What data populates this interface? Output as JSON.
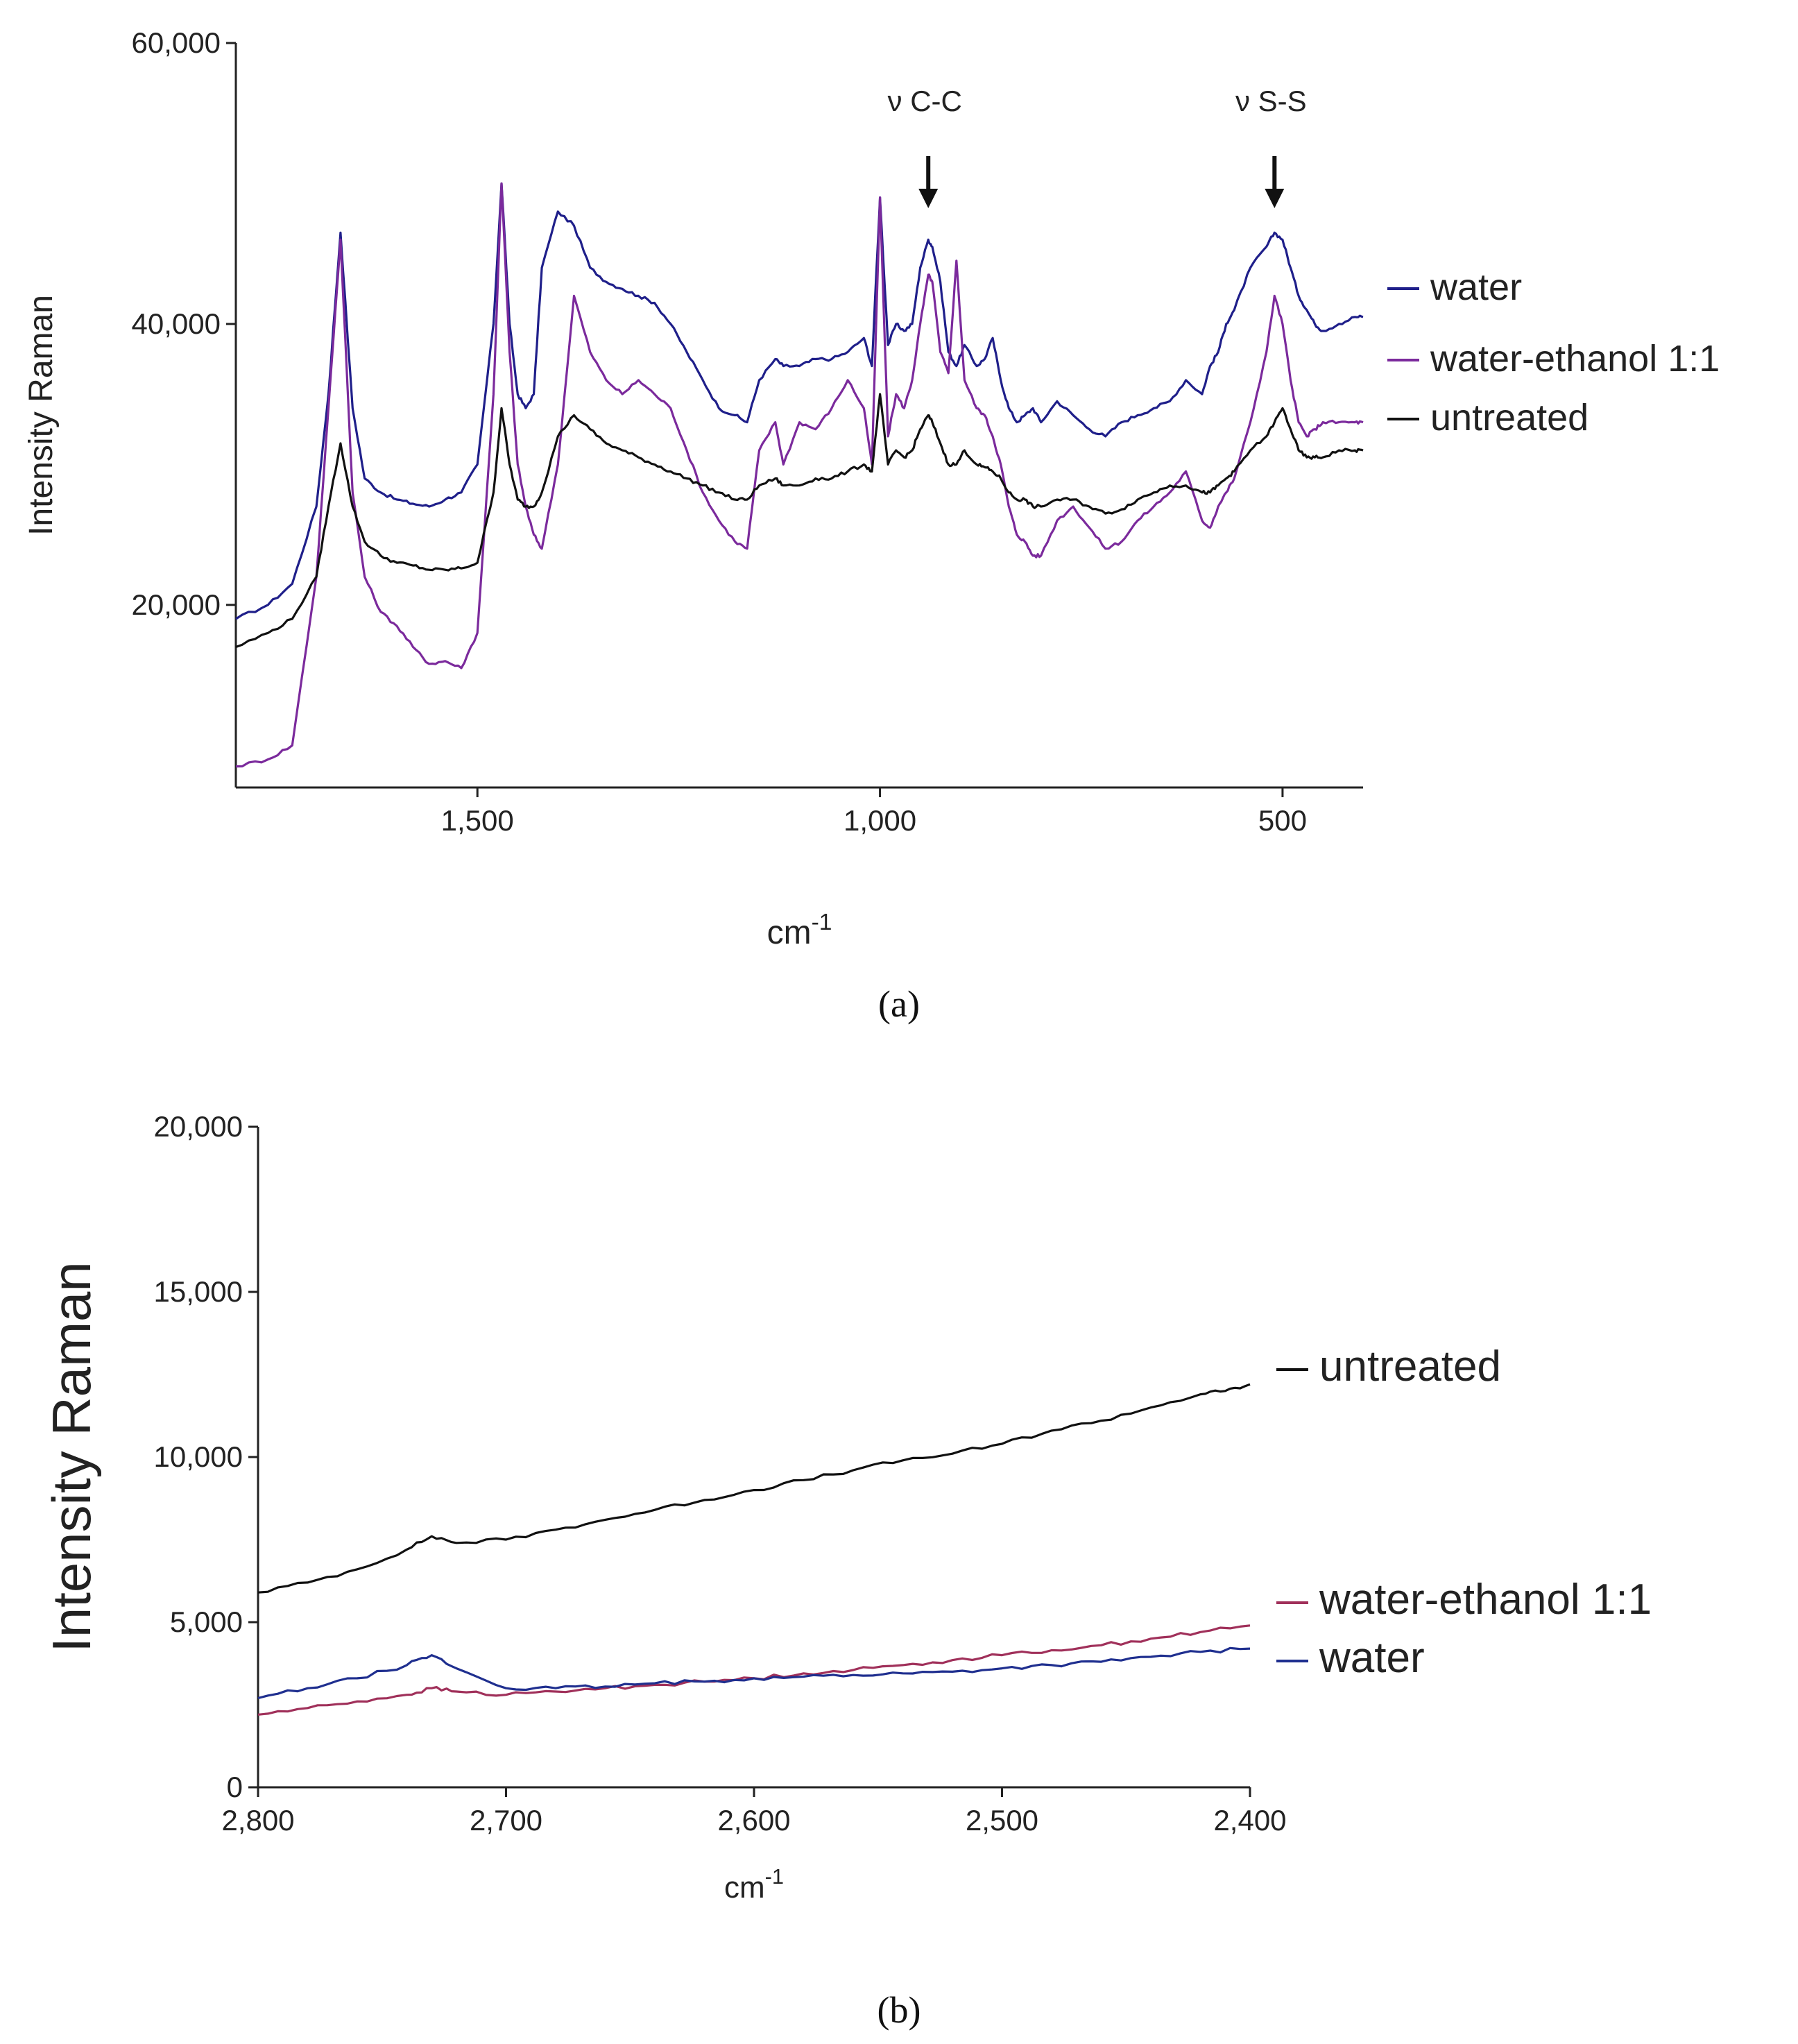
{
  "chart_data": [
    {
      "panel_label": "(a)",
      "type": "line",
      "xlabel": "cm",
      "xlabel_sup": "-1",
      "ylabel": "Intensity Raman",
      "xlim": [
        1800,
        400
      ],
      "x_reversed": true,
      "ylim": [
        7000,
        60000
      ],
      "x_ticks": [
        1500,
        1000,
        500
      ],
      "x_tick_labels": [
        "1,500",
        "1,000",
        "500"
      ],
      "y_ticks": [
        20000,
        40000,
        60000
      ],
      "y_tick_labels": [
        "20,000",
        "40,000",
        "60,000"
      ],
      "grid": false,
      "legend_position": "right",
      "annotations": [
        {
          "text": "ν C-C",
          "x": 940,
          "arrow": true
        },
        {
          "text": "ν S-S",
          "x": 510,
          "arrow": true
        }
      ],
      "series": [
        {
          "name": "water",
          "color": "#1f1f8a",
          "x": [
            1800,
            1760,
            1730,
            1700,
            1685,
            1670,
            1655,
            1640,
            1620,
            1600,
            1580,
            1560,
            1540,
            1520,
            1500,
            1480,
            1470,
            1460,
            1450,
            1440,
            1430,
            1420,
            1400,
            1380,
            1360,
            1340,
            1320,
            1300,
            1280,
            1260,
            1240,
            1220,
            1200,
            1180,
            1165,
            1150,
            1130,
            1120,
            1100,
            1080,
            1060,
            1040,
            1020,
            1010,
            1000,
            990,
            980,
            970,
            960,
            950,
            940,
            935,
            925,
            915,
            905,
            895,
            880,
            870,
            860,
            850,
            840,
            830,
            820,
            810,
            800,
            780,
            760,
            740,
            720,
            700,
            680,
            660,
            640,
            620,
            600,
            590,
            580,
            570,
            560,
            540,
            520,
            510,
            500,
            490,
            480,
            470,
            460,
            450,
            430,
            410,
            400
          ],
          "values": [
            19000,
            20000,
            21500,
            27000,
            35000,
            46500,
            34000,
            29000,
            28000,
            27500,
            27200,
            27000,
            27500,
            28000,
            30000,
            40000,
            50000,
            40000,
            35000,
            34000,
            35000,
            44000,
            48000,
            47000,
            44000,
            43000,
            42500,
            42000,
            41500,
            40000,
            38000,
            36000,
            34000,
            33500,
            33000,
            36000,
            37500,
            37000,
            37000,
            37500,
            37500,
            38000,
            39000,
            37000,
            49000,
            38500,
            40000,
            39500,
            40000,
            44000,
            46000,
            45500,
            43000,
            38000,
            37000,
            38500,
            37000,
            37500,
            39000,
            36000,
            34000,
            33000,
            33500,
            34000,
            33000,
            34500,
            33500,
            32500,
            32000,
            33000,
            33500,
            34000,
            34500,
            36000,
            35000,
            37000,
            38000,
            40000,
            41000,
            44000,
            45500,
            46500,
            46000,
            44000,
            42000,
            41000,
            40000,
            39500,
            40000,
            40500,
            40500
          ]
        },
        {
          "name": "water-ethanol 1:1",
          "color": "#7b2a9c",
          "x": [
            1800,
            1760,
            1730,
            1700,
            1685,
            1670,
            1655,
            1640,
            1620,
            1600,
            1580,
            1560,
            1540,
            1520,
            1500,
            1480,
            1470,
            1460,
            1450,
            1440,
            1430,
            1420,
            1400,
            1380,
            1360,
            1340,
            1320,
            1300,
            1280,
            1260,
            1240,
            1220,
            1200,
            1180,
            1165,
            1150,
            1130,
            1120,
            1100,
            1080,
            1060,
            1040,
            1020,
            1010,
            1000,
            990,
            980,
            970,
            960,
            950,
            940,
            935,
            925,
            915,
            905,
            895,
            880,
            870,
            860,
            850,
            840,
            830,
            820,
            810,
            800,
            780,
            760,
            740,
            720,
            700,
            680,
            660,
            640,
            620,
            600,
            590,
            580,
            570,
            560,
            540,
            520,
            510,
            500,
            490,
            480,
            470,
            460,
            450,
            430,
            410,
            400
          ],
          "values": [
            8500,
            9000,
            10000,
            22000,
            34000,
            46000,
            28000,
            22000,
            19500,
            18500,
            17000,
            15800,
            16000,
            15500,
            18000,
            35000,
            50000,
            38000,
            30000,
            27000,
            25000,
            24000,
            30000,
            42000,
            38000,
            36000,
            35000,
            36000,
            35000,
            34000,
            31000,
            28000,
            26000,
            24500,
            24000,
            31000,
            33000,
            30000,
            33000,
            32500,
            34000,
            36000,
            34000,
            30000,
            49000,
            32000,
            35000,
            34000,
            36000,
            40000,
            43500,
            43000,
            38000,
            36500,
            44500,
            36000,
            34000,
            33500,
            32000,
            30000,
            27000,
            25000,
            24500,
            23500,
            23500,
            26000,
            27000,
            25500,
            24000,
            24500,
            26000,
            27000,
            28000,
            29500,
            26000,
            25500,
            27000,
            28000,
            29000,
            33000,
            38000,
            42000,
            40000,
            36000,
            33000,
            32000,
            32500,
            33000,
            33000,
            33000,
            33000
          ]
        },
        {
          "name": "untreated",
          "color": "#111111",
          "x": [
            1800,
            1760,
            1730,
            1700,
            1685,
            1670,
            1655,
            1640,
            1620,
            1600,
            1580,
            1560,
            1540,
            1520,
            1500,
            1480,
            1470,
            1460,
            1450,
            1440,
            1430,
            1420,
            1400,
            1380,
            1360,
            1340,
            1320,
            1300,
            1280,
            1260,
            1240,
            1220,
            1200,
            1180,
            1165,
            1150,
            1130,
            1120,
            1100,
            1080,
            1060,
            1040,
            1020,
            1010,
            1000,
            990,
            980,
            970,
            960,
            950,
            940,
            935,
            925,
            915,
            905,
            895,
            880,
            870,
            860,
            850,
            840,
            830,
            820,
            810,
            800,
            780,
            760,
            740,
            720,
            700,
            680,
            660,
            640,
            620,
            600,
            590,
            580,
            570,
            560,
            540,
            520,
            510,
            500,
            490,
            480,
            470,
            460,
            450,
            430,
            410,
            400
          ],
          "values": [
            17000,
            18000,
            19000,
            22000,
            27000,
            31500,
            27000,
            24500,
            23500,
            23000,
            22800,
            22500,
            22500,
            22600,
            23000,
            28000,
            34000,
            30000,
            27500,
            27000,
            27000,
            28000,
            32000,
            33500,
            32500,
            31500,
            31000,
            30500,
            30000,
            29500,
            29000,
            28500,
            28000,
            27500,
            27500,
            28500,
            29000,
            28500,
            28500,
            29000,
            29000,
            29500,
            30000,
            29500,
            35000,
            30000,
            31000,
            30500,
            31000,
            32500,
            33500,
            33000,
            31500,
            30000,
            30000,
            31000,
            30000,
            29800,
            29500,
            29000,
            28000,
            27500,
            27500,
            27000,
            27000,
            27500,
            27500,
            27000,
            26500,
            26800,
            27500,
            28000,
            28500,
            28500,
            28000,
            28000,
            28500,
            29000,
            29500,
            31000,
            32000,
            33000,
            34000,
            32500,
            31000,
            30500,
            30500,
            30500,
            31000,
            31000,
            31000
          ]
        }
      ]
    },
    {
      "panel_label": "(b)",
      "type": "line",
      "xlabel": "cm",
      "xlabel_sup": "-1",
      "ylabel": "Intensity Raman",
      "xlim": [
        2800,
        2400
      ],
      "x_reversed": true,
      "ylim": [
        0,
        20000
      ],
      "x_ticks": [
        2800,
        2700,
        2600,
        2500,
        2400
      ],
      "x_tick_labels": [
        "2,800",
        "2,700",
        "2,600",
        "2,500",
        "2,400"
      ],
      "y_ticks": [
        0,
        5000,
        10000,
        15000,
        20000
      ],
      "y_tick_labels": [
        "0",
        "5,000",
        "10,000",
        "15,000",
        "20,000"
      ],
      "grid": false,
      "legend_position": "right",
      "series": [
        {
          "name": "untreated",
          "color": "#111111",
          "x": [
            2800,
            2780,
            2760,
            2740,
            2730,
            2720,
            2700,
            2680,
            2660,
            2640,
            2620,
            2600,
            2580,
            2560,
            2540,
            2520,
            2500,
            2480,
            2460,
            2440,
            2420,
            2410,
            2400
          ],
          "values": [
            5900,
            6200,
            6600,
            7200,
            7600,
            7400,
            7500,
            7800,
            8100,
            8400,
            8700,
            9000,
            9300,
            9600,
            9900,
            10100,
            10400,
            10800,
            11100,
            11500,
            11900,
            12000,
            12200
          ]
        },
        {
          "name": "water-ethanol 1:1",
          "color": "#a0305a",
          "x": [
            2800,
            2780,
            2760,
            2740,
            2730,
            2720,
            2700,
            2680,
            2660,
            2640,
            2620,
            2600,
            2580,
            2560,
            2540,
            2520,
            2500,
            2480,
            2460,
            2440,
            2420,
            2400
          ],
          "values": [
            2200,
            2400,
            2600,
            2800,
            3000,
            2900,
            2800,
            2900,
            3000,
            3100,
            3200,
            3300,
            3450,
            3550,
            3700,
            3850,
            4000,
            4150,
            4300,
            4500,
            4700,
            4900
          ]
        },
        {
          "name": "water",
          "color": "#1f2f8f",
          "x": [
            2800,
            2780,
            2760,
            2740,
            2730,
            2720,
            2700,
            2680,
            2660,
            2640,
            2620,
            2600,
            2580,
            2560,
            2540,
            2520,
            2500,
            2480,
            2460,
            2440,
            2420,
            2400
          ],
          "values": [
            2700,
            3000,
            3300,
            3700,
            4000,
            3600,
            3000,
            3000,
            3050,
            3150,
            3200,
            3300,
            3350,
            3400,
            3450,
            3500,
            3600,
            3700,
            3800,
            3950,
            4100,
            4200
          ]
        }
      ]
    }
  ]
}
